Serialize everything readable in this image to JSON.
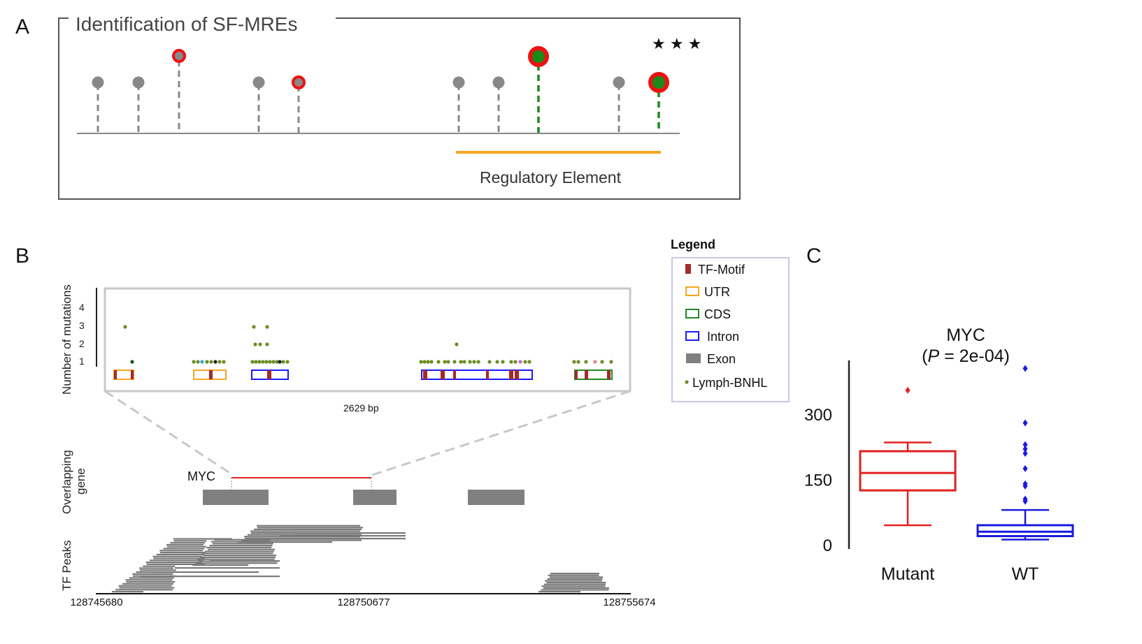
{
  "panel_a": {
    "letter": "A",
    "title": "Identification of SF-MREs",
    "element_label": "Regulatory Element",
    "stars": "★ ★ ★"
  },
  "panel_b": {
    "letter": "B",
    "y_axis_label": "Number of mutations",
    "y_ticks": [
      "1",
      "2",
      "3",
      "4"
    ],
    "span_label": "2629 bp",
    "gene_track_label_1": "Overlapping",
    "gene_track_label_2": "gene",
    "gene_name": "MYC",
    "peaks_track_label": "TF Peaks",
    "coords": [
      "128745680",
      "128750677",
      "128755674"
    ],
    "legend": {
      "title": "Legend",
      "items": [
        {
          "label": "TF-Motif",
          "color": "#a52a2a"
        },
        {
          "label": "UTR",
          "color": "#f5a623"
        },
        {
          "label": "CDS",
          "color": "#1f8a1f"
        },
        {
          "label": "Intron",
          "color": "#1a1aff"
        },
        {
          "label": "Exon",
          "color": "#808080"
        },
        {
          "label": "Lymph-BNHL",
          "color": "#6b8e23"
        }
      ]
    }
  },
  "panel_c": {
    "letter": "C",
    "title_gene": "MYC",
    "title_p_open": "(",
    "title_p_var": "P",
    "title_p_rest": " = 2e-04)"
  },
  "chart_data": {
    "type": "box",
    "title": "MYC (P = 2e-04)",
    "categories": [
      "Mutant",
      "WT"
    ],
    "y_ticks": [
      0,
      150,
      300
    ],
    "ylim": [
      0,
      420
    ],
    "series": [
      {
        "name": "Mutant",
        "color": "#e02020",
        "min": 45,
        "q1": 125,
        "median": 165,
        "q3": 215,
        "max": 235,
        "outliers": [
          355
        ]
      },
      {
        "name": "WT",
        "color": "#1a1add",
        "min": 12,
        "q1": 20,
        "median": 30,
        "q3": 45,
        "max": 80,
        "outliers": [
          100,
          105,
          135,
          140,
          175,
          210,
          220,
          230,
          280,
          405
        ]
      }
    ]
  }
}
